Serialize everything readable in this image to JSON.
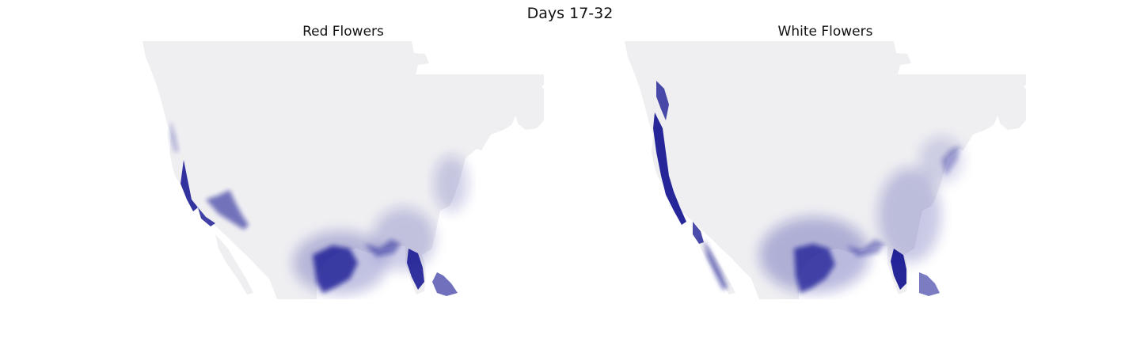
{
  "figure": {
    "suptitle": "Days 17-32",
    "background_color": "#ffffff",
    "land_base_color": "#efeff2",
    "density_color": "#10108f"
  },
  "panels": [
    {
      "id": "left",
      "title": "Red Flowers",
      "hotspots": [
        "Pacific coast",
        "Central Valley / Northern California",
        "Texas Gulf coast",
        "Florida peninsula",
        "Caribbean islands"
      ]
    },
    {
      "id": "right",
      "title": "White Flowers",
      "hotspots": [
        "Pacific Northwest coast",
        "California coast",
        "Baja California",
        "Texas / Gulf coast",
        "Florida peninsula",
        "Atlantic seaboard"
      ]
    }
  ]
}
